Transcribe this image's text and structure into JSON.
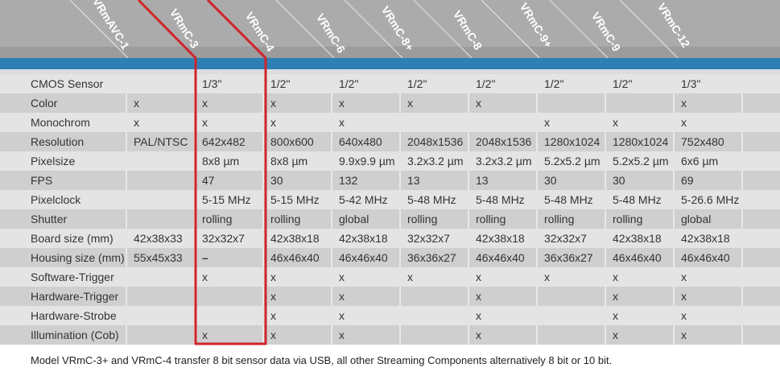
{
  "colors": {
    "header_gray": "#ababab",
    "header_band": "#9c9c9c",
    "accent_blue": "#2e80b4",
    "highlight_red": "#d0242b"
  },
  "models": [
    "VRmAVC-1",
    "VRmC-3",
    "VRmC-4",
    "VRmC-6",
    "VRmC-8+",
    "VRmC-8",
    "VRmC-9+",
    "VRmC-9",
    "VRmC-12"
  ],
  "rows": [
    {
      "label": "CMOS Sensor",
      "cells": [
        "",
        "1/3\"",
        "1/2\"",
        "1/2\"",
        "1/2\"",
        "1/2\"",
        "1/2\"",
        "1/2\"",
        "1/3\""
      ]
    },
    {
      "label": "Color",
      "cells": [
        "x",
        "x",
        "x",
        "x",
        "x",
        "x",
        "",
        "",
        "x"
      ]
    },
    {
      "label": "Monochrom",
      "cells": [
        "x",
        "x",
        "x",
        "x",
        "",
        "",
        "x",
        "x",
        "x"
      ]
    },
    {
      "label": "Resolution",
      "cells": [
        "PAL/NTSC",
        "642x482",
        "800x600",
        "640x480",
        "2048x1536",
        "2048x1536",
        "1280x1024",
        "1280x1024",
        "752x480"
      ]
    },
    {
      "label": "Pixelsize",
      "cells": [
        "",
        "8x8 µm",
        "8x8 µm",
        "9.9x9.9 µm",
        "3.2x3.2 µm",
        "3.2x3.2 µm",
        "5.2x5.2 µm",
        "5.2x5.2 µm",
        "6x6 µm"
      ]
    },
    {
      "label": "FPS",
      "cells": [
        "",
        "47",
        "30",
        "132",
        "13",
        "13",
        "30",
        "30",
        "69"
      ]
    },
    {
      "label": "Pixelclock",
      "cells": [
        "",
        "5-15 MHz",
        "5-15 MHz",
        "5-42 MHz",
        "5-48 MHz",
        "5-48 MHz",
        "5-48 MHz",
        "5-48 MHz",
        "5-26.6 MHz"
      ]
    },
    {
      "label": "Shutter",
      "cells": [
        "",
        "rolling",
        "rolling",
        "global",
        "rolling",
        "rolling",
        "rolling",
        "rolling",
        "global"
      ]
    },
    {
      "label": "Board size (mm)",
      "cells": [
        "42x38x33",
        "32x32x7",
        "42x38x18",
        "42x38x18",
        "32x32x7",
        "42x38x18",
        "32x32x7",
        "42x38x18",
        "42x38x18"
      ]
    },
    {
      "label": "Housing size (mm)",
      "cells": [
        "55x45x33",
        "–",
        "46x46x40",
        "46x46x40",
        "36x36x27",
        "46x46x40",
        "36x36x27",
        "46x46x40",
        "46x46x40"
      ]
    },
    {
      "label": "Software-Trigger",
      "cells": [
        "",
        "x",
        "x",
        "x",
        "x",
        "x",
        "x",
        "x",
        "x"
      ]
    },
    {
      "label": "Hardware-Trigger",
      "cells": [
        "",
        "",
        "x",
        "x",
        "",
        "x",
        "",
        "x",
        "x"
      ]
    },
    {
      "label": "Hardware-Strobe",
      "cells": [
        "",
        "",
        "x",
        "x",
        "",
        "x",
        "",
        "x",
        "x"
      ]
    },
    {
      "label": "Illumination (Cob)",
      "cells": [
        "",
        "x",
        "x",
        "x",
        "",
        "x",
        "",
        "x",
        "x"
      ]
    }
  ],
  "footnote": "Model VRmC-3+ and VRmC-4 transfer 8 bit sensor data via USB, all other Streaming Components alternatively 8 bit or 10 bit."
}
